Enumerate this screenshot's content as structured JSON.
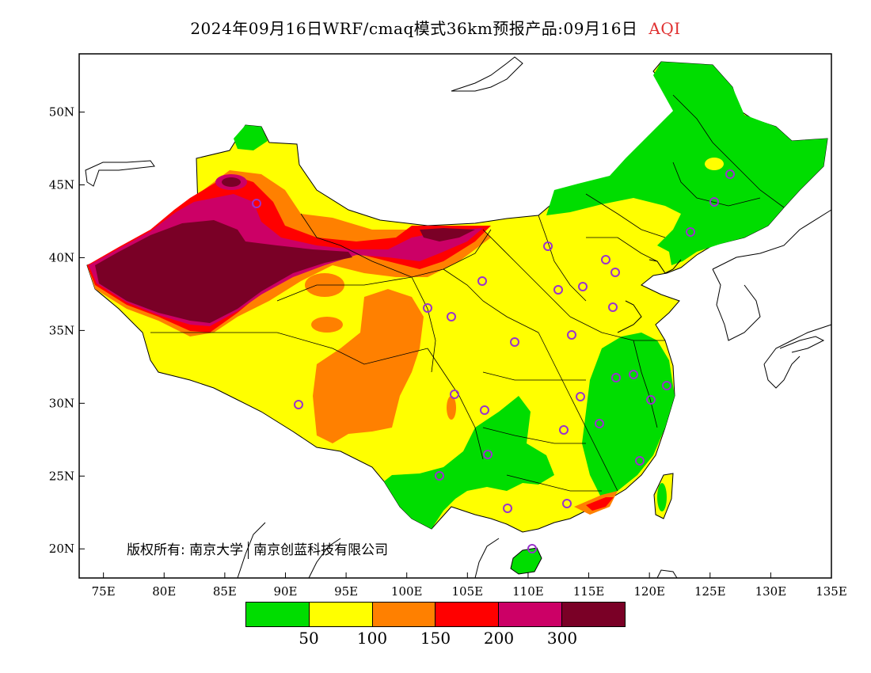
{
  "title": {
    "main": "2024年09月16日WRF/cmaq模式36km预报产品:09月16日",
    "variable": "AQI"
  },
  "axes": {
    "x_ticks": [
      "75E",
      "80E",
      "85E",
      "90E",
      "95E",
      "100E",
      "105E",
      "110E",
      "115E",
      "120E",
      "125E",
      "130E",
      "135E"
    ],
    "y_ticks": [
      "50N",
      "45N",
      "40N",
      "35N",
      "30N",
      "25N",
      "20N"
    ],
    "lon_range": [
      73,
      135
    ],
    "lat_range": [
      18,
      54
    ]
  },
  "legend": {
    "thresholds": [
      "50",
      "100",
      "150",
      "200",
      "300"
    ],
    "colors": [
      "#00dd00",
      "#ffff00",
      "#ff8000",
      "#ff0000",
      "#cc0066",
      "#7a0026"
    ]
  },
  "copyright": {
    "label": "版权所有:",
    "org1": "南京大学",
    "org2": "南京创蓝科技有限公司"
  },
  "station_marker_color": "#9933cc"
}
